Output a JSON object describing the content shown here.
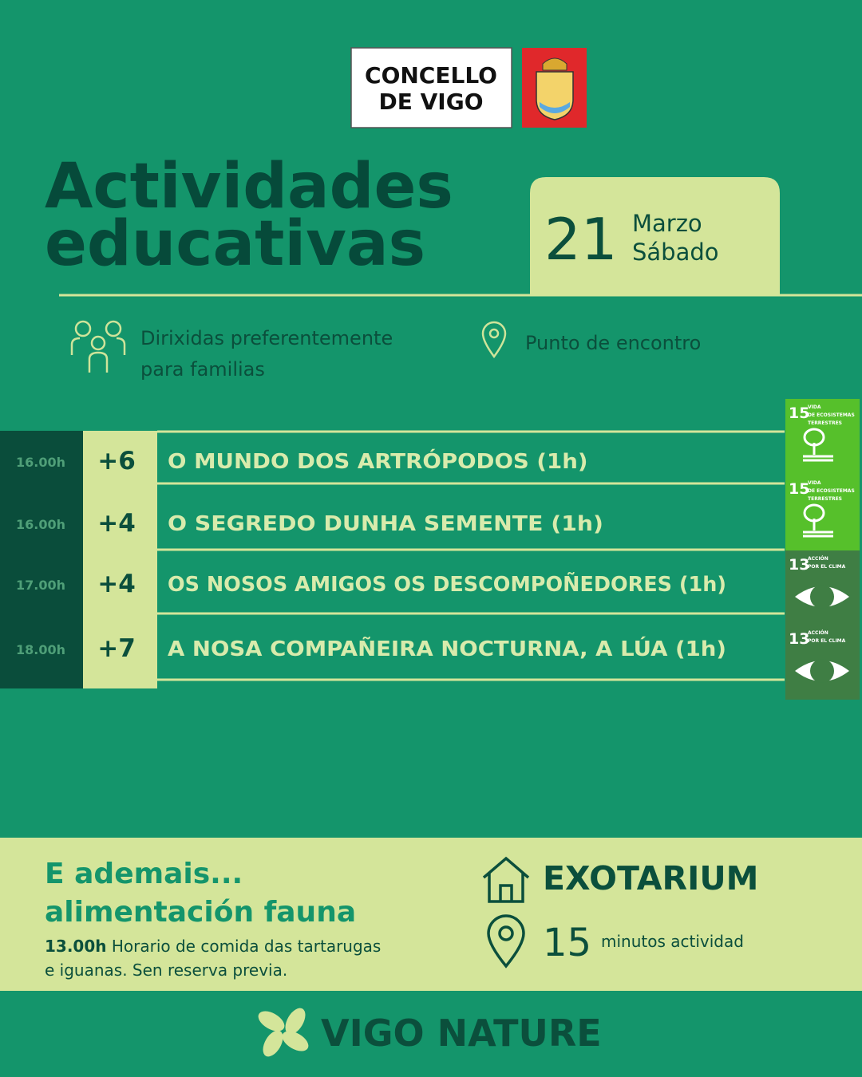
{
  "header": {
    "logo_text": [
      "CONCELLO",
      "DE VIGO"
    ],
    "title": [
      "Actividades",
      "educativas"
    ],
    "date": {
      "day": "21",
      "month": "Marzo",
      "weekday": "Sábado"
    }
  },
  "info": {
    "audience": [
      "Dirixidas preferentemente",
      "para familias"
    ],
    "location": "Punto de encontro"
  },
  "activities": [
    {
      "time": "16.00h",
      "age": "+6",
      "title": "O MUNDO DOS ARTRÓPODOS (1h)",
      "sdg": {
        "number": "15",
        "label": [
          "VIDA",
          "DE ECOSISTEMAS",
          "TERRESTRES"
        ],
        "color": "#56c02b"
      }
    },
    {
      "time": "16.00h",
      "age": "+4",
      "title": "O SEGREDO DUNHA SEMENTE (1h)",
      "sdg": {
        "number": "15",
        "label": [
          "VIDA",
          "DE ECOSISTEMAS",
          "TERRESTRES"
        ],
        "color": "#56c02b"
      }
    },
    {
      "time": "17.00h",
      "age": "+4",
      "title": "OS NOSOS AMIGOS OS DESCOMPOÑEDORES (1h)",
      "sdg": {
        "number": "13",
        "label": [
          "ACCIÓN",
          "POR EL CLIMA"
        ],
        "color": "#3f7e44"
      }
    },
    {
      "time": "18.00h",
      "age": "+7",
      "title": "A NOSA COMPAÑEIRA NOCTURNA, A LÚA (1h)",
      "sdg": {
        "number": "13",
        "label": [
          "ACCIÓN",
          "POR EL CLIMA"
        ],
        "color": "#3f7e44"
      }
    }
  ],
  "extra": {
    "title": [
      "E ademais...",
      "alimentación fauna"
    ],
    "time": "13.00h",
    "text": [
      "Horario de comida das tartarugas",
      "e iguanas. Sen reserva previa."
    ],
    "place": "EXOTARIUM",
    "duration": "15",
    "duration_label": "minutos actividad"
  },
  "footer": {
    "brand": "VIGO NATURE"
  }
}
